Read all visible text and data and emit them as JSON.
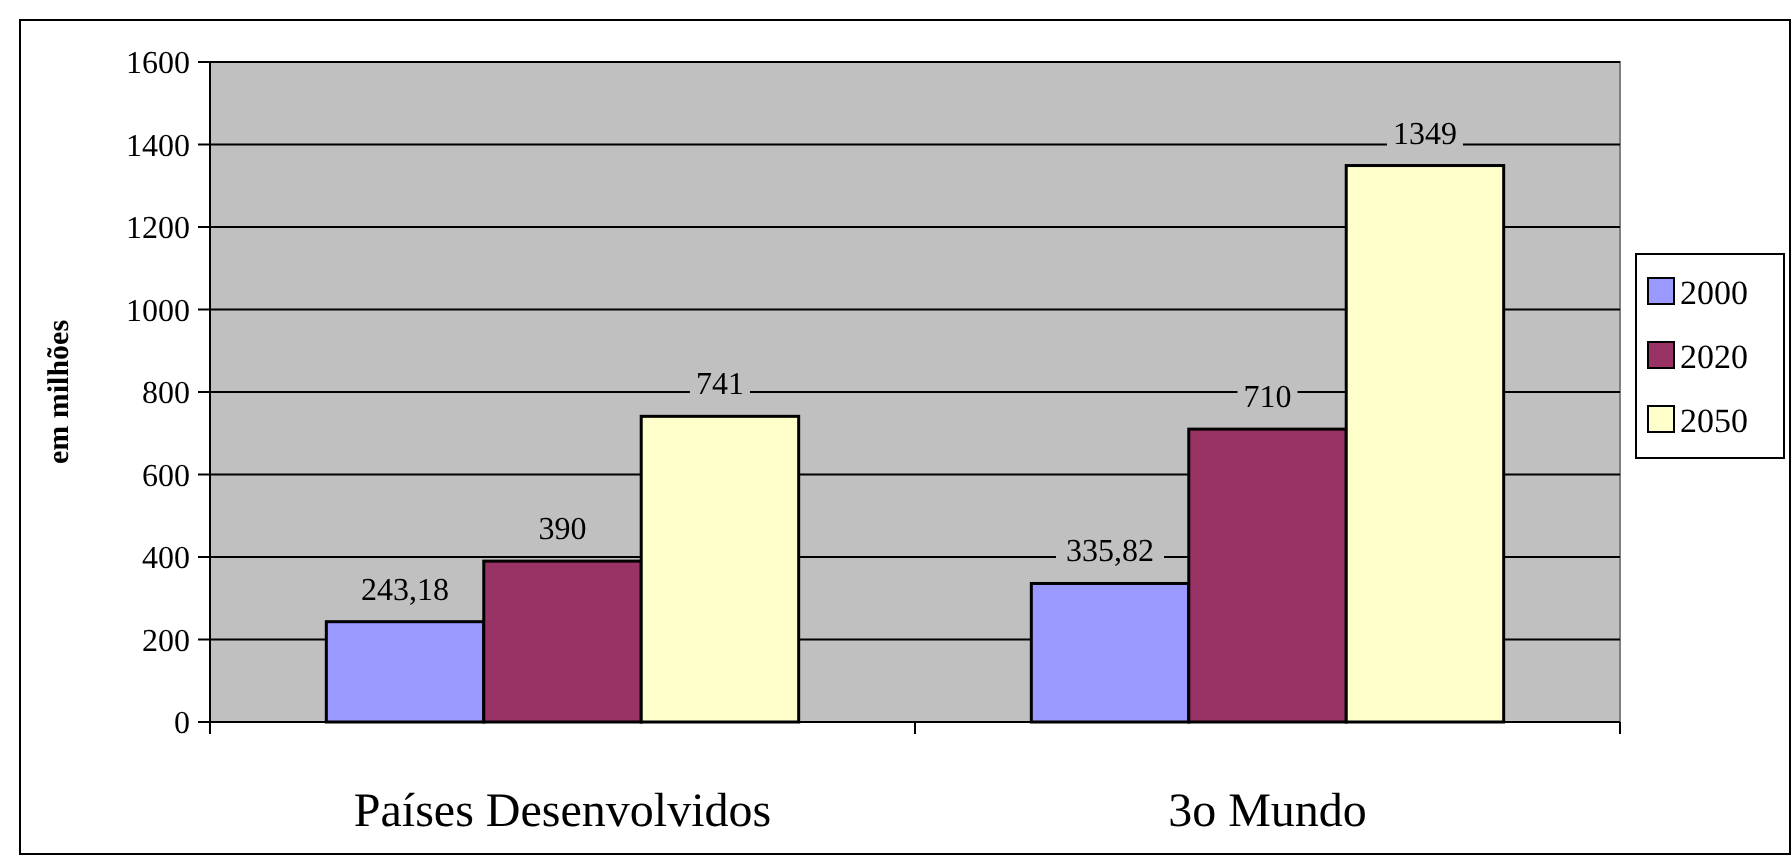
{
  "chart_data": {
    "type": "bar",
    "ylabel": "em milhões",
    "categories": [
      "Países Desenvolvidos",
      "3o Mundo"
    ],
    "series": [
      {
        "name": "2000",
        "color": "#9999ff",
        "values": [
          243.18,
          335.82
        ],
        "value_labels": [
          "243,18",
          "335,82"
        ]
      },
      {
        "name": "2020",
        "color": "#993366",
        "values": [
          390,
          710
        ],
        "value_labels": [
          "390",
          "710"
        ]
      },
      {
        "name": "2050",
        "color": "#ffffcc",
        "values": [
          741,
          1349
        ],
        "value_labels": [
          "741",
          "1349"
        ]
      }
    ],
    "ylim": [
      0,
      1600
    ],
    "yticks": [
      0,
      200,
      400,
      600,
      800,
      1000,
      1200,
      1400,
      1600
    ],
    "grid": "y",
    "legend": "right"
  }
}
